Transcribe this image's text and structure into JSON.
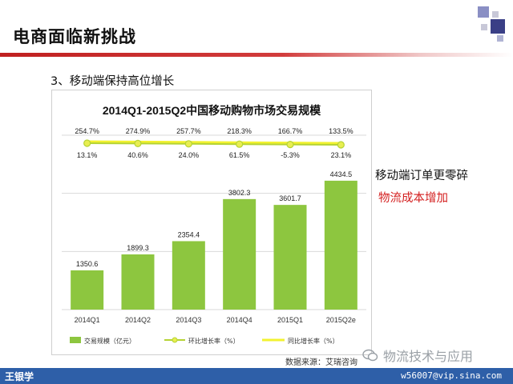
{
  "slide": {
    "title": "电商面临新挑战",
    "subtitle": "3、移动端保持高位增长",
    "side_note_1": "移动端订单更零碎",
    "side_note_2": "物流成本增加",
    "source": "数据来源：艾瑞咨询",
    "watermark": "物流技术与应用",
    "footer_name": "王银学",
    "footer_email": "w56007@vip.sina.com"
  },
  "colors": {
    "bar": "#8dc63f",
    "mom_line": "#b5d334",
    "yoy_line": "#f2f230",
    "accent_red": "#d42020",
    "footer_blue": "#2e5fa8"
  },
  "chart_data": {
    "type": "bar",
    "title": "2014Q1-2015Q2中国移动购物市场交易规模",
    "categories": [
      "2014Q1",
      "2014Q2",
      "2014Q3",
      "2014Q4",
      "2015Q1",
      "2015Q2e"
    ],
    "ylim": [
      0,
      6000
    ],
    "yticks": [
      "0",
      "2000",
      "4000",
      "6000"
    ],
    "grid": true,
    "legend_position": "bottom",
    "series": [
      {
        "name": "交易规模（亿元）",
        "type": "bar",
        "values": [
          1350.6,
          1899.3,
          2354.4,
          3802.3,
          3601.7,
          4434.5
        ],
        "labels": [
          "1350.6",
          "1899.3",
          "2354.4",
          "3802.3",
          "3601.7",
          "4434.5"
        ]
      },
      {
        "name": "环比增长率（%）",
        "type": "line",
        "values": [
          13.1,
          40.6,
          24.0,
          61.5,
          -5.3,
          23.1
        ],
        "labels": [
          "13.1%",
          "40.6%",
          "24.0%",
          "61.5%",
          "-5.3%",
          "23.1%"
        ]
      },
      {
        "name": "同比增长率（%）",
        "type": "line",
        "values": [
          254.7,
          274.9,
          257.7,
          218.3,
          166.7,
          133.5
        ],
        "labels": [
          "254.7%",
          "274.9%",
          "257.7%",
          "218.3%",
          "166.7%",
          "133.5%"
        ]
      }
    ]
  }
}
